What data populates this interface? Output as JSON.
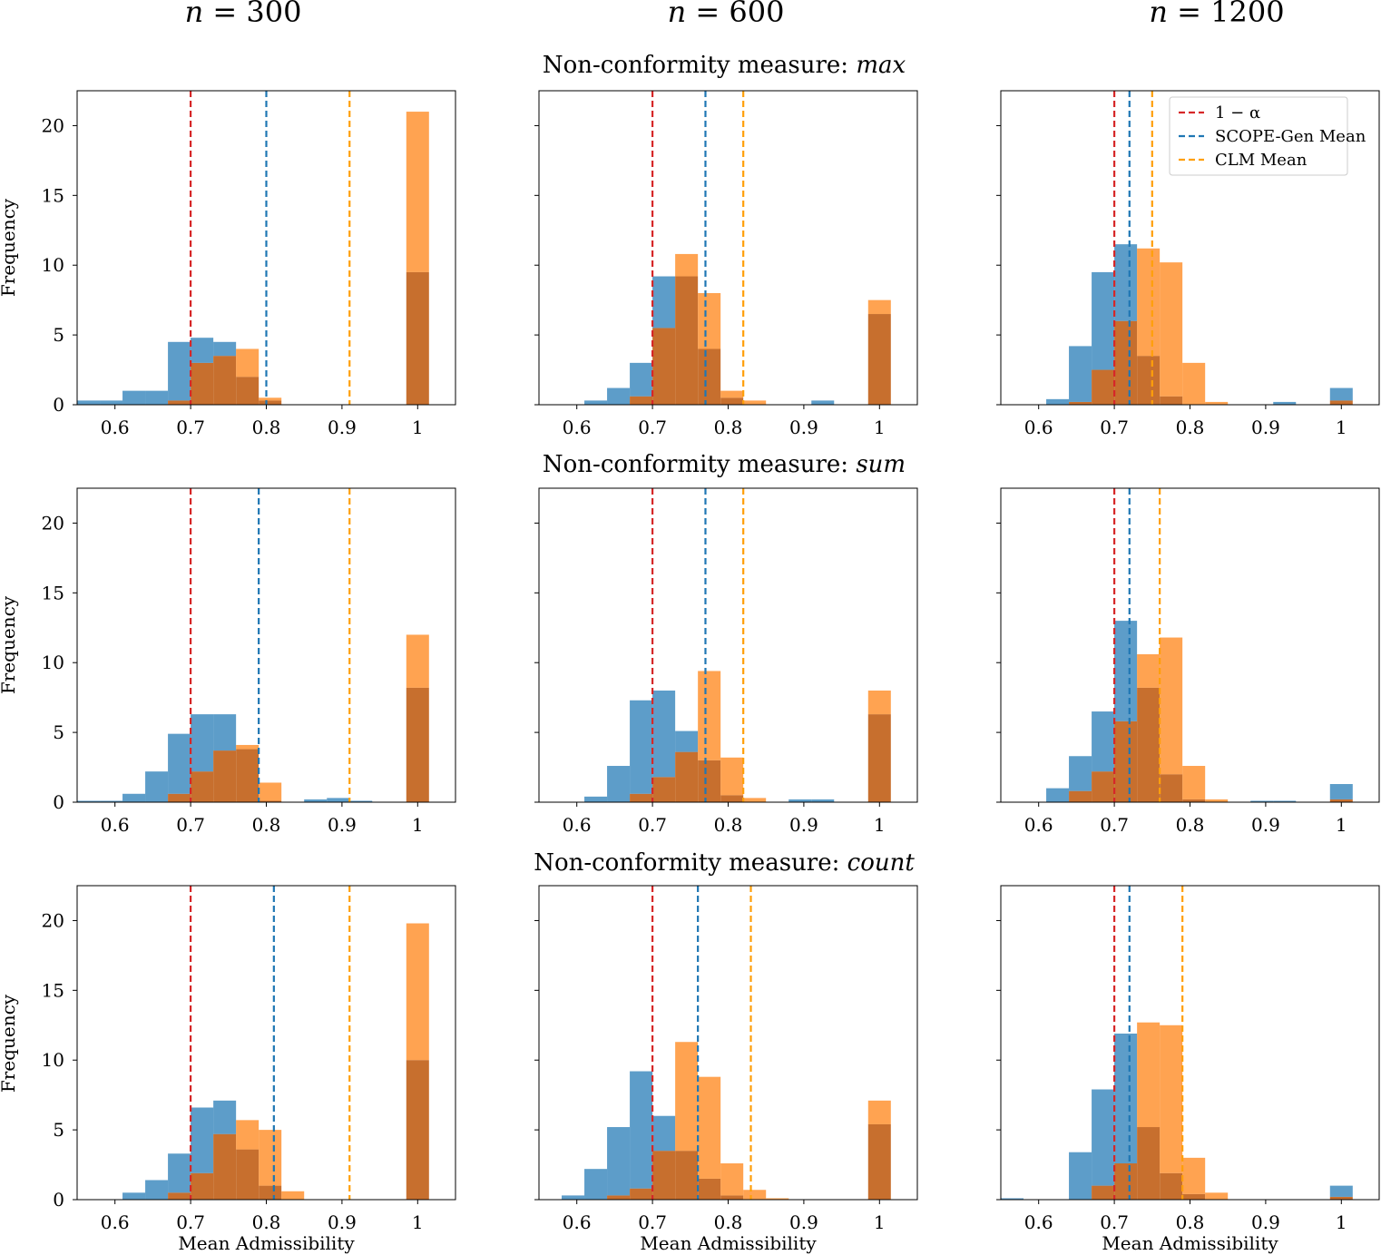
{
  "figure": {
    "column_titles": [
      "n = 300",
      "n = 600",
      "n = 1200"
    ],
    "row_titles": [
      "Non-conformity measure: max",
      "Non-conformity measure: sum",
      "Non-conformity measure: count"
    ],
    "row_title_prefix": "Non-conformity measure: ",
    "row_title_measures": [
      "max",
      "sum",
      "count"
    ],
    "n_label_prefix": "n",
    "n_values": [
      "300",
      "600",
      "1200"
    ],
    "xlabel": "Mean Admissibility",
    "ylabel": "Frequency",
    "legend": [
      "1 − α",
      "SCOPE-Gen Mean",
      "CLM Mean"
    ]
  },
  "colors": {
    "scope_bar": "#1f77b4",
    "clm_bar": "#ff7f0e",
    "overlap_bar": "#c76f2e",
    "alpha_line": "#d62728",
    "scope_line": "#1f77b4",
    "clm_line": "#ff9f0a"
  },
  "chart_data": [
    {
      "type": "bar",
      "row": "max",
      "n": 300,
      "xlim": [
        0.55,
        1.05
      ],
      "ylim": [
        0,
        22.5
      ],
      "xticks": [
        "0.6",
        "0.7",
        "0.8",
        "0.9",
        "1"
      ],
      "yticks": [
        "0",
        "5",
        "10",
        "15",
        "20"
      ],
      "alpha": 0.7,
      "scope_mean": 0.8,
      "clm_mean": 0.91,
      "bin_centers": [
        0.565,
        0.595,
        0.625,
        0.655,
        0.685,
        0.715,
        0.745,
        0.775,
        0.805,
        0.835,
        0.865,
        0.895,
        0.925,
        0.955,
        0.985,
        1.0
      ],
      "scope": [
        0.3,
        0.3,
        1.0,
        1.0,
        4.5,
        4.8,
        4.5,
        2.0,
        0.3,
        0,
        0,
        0,
        0,
        0,
        0,
        9.5
      ],
      "clm": [
        0,
        0,
        0,
        0,
        0.3,
        3.0,
        3.5,
        4.0,
        0.5,
        0,
        0,
        0,
        0,
        0,
        0,
        21.0
      ]
    },
    {
      "type": "bar",
      "row": "max",
      "n": 600,
      "xlim": [
        0.55,
        1.05
      ],
      "ylim": [
        0,
        22.5
      ],
      "xticks": [
        "0.6",
        "0.7",
        "0.8",
        "0.9",
        "1"
      ],
      "yticks": [
        "0",
        "5",
        "10",
        "15",
        "20"
      ],
      "alpha": 0.7,
      "scope_mean": 0.77,
      "clm_mean": 0.82,
      "bin_centers": [
        0.565,
        0.595,
        0.625,
        0.655,
        0.685,
        0.715,
        0.745,
        0.775,
        0.805,
        0.835,
        0.865,
        0.895,
        0.925,
        0.955,
        0.985,
        1.0
      ],
      "scope": [
        0,
        0,
        0.3,
        1.2,
        3.0,
        9.2,
        9.2,
        4.0,
        0.5,
        0,
        0,
        0,
        0.3,
        0,
        0,
        6.5
      ],
      "clm": [
        0,
        0,
        0,
        0,
        0.6,
        5.5,
        10.8,
        8.0,
        1.0,
        0.3,
        0,
        0,
        0,
        0,
        0,
        7.5
      ]
    },
    {
      "type": "bar",
      "row": "max",
      "n": 1200,
      "xlim": [
        0.55,
        1.05
      ],
      "ylim": [
        0,
        22.5
      ],
      "xticks": [
        "0.6",
        "0.7",
        "0.8",
        "0.9",
        "1"
      ],
      "yticks": [
        "0",
        "5",
        "10",
        "15",
        "20"
      ],
      "alpha": 0.7,
      "scope_mean": 0.72,
      "clm_mean": 0.75,
      "bin_centers": [
        0.565,
        0.595,
        0.625,
        0.655,
        0.685,
        0.715,
        0.745,
        0.775,
        0.805,
        0.835,
        0.865,
        0.895,
        0.925,
        0.955,
        0.985,
        1.0
      ],
      "scope": [
        0,
        0,
        0.4,
        4.2,
        9.5,
        11.5,
        3.5,
        0.6,
        0,
        0,
        0,
        0,
        0.2,
        0,
        0,
        1.2
      ],
      "clm": [
        0,
        0,
        0,
        0.2,
        2.5,
        6.0,
        11.2,
        10.2,
        3.0,
        0.2,
        0,
        0,
        0,
        0,
        0,
        0.3
      ]
    },
    {
      "type": "bar",
      "row": "sum",
      "n": 300,
      "xlim": [
        0.55,
        1.05
      ],
      "ylim": [
        0,
        22.5
      ],
      "xticks": [
        "0.6",
        "0.7",
        "0.8",
        "0.9",
        "1"
      ],
      "yticks": [
        "0",
        "5",
        "10",
        "15",
        "20"
      ],
      "alpha": 0.7,
      "scope_mean": 0.79,
      "clm_mean": 0.91,
      "bin_centers": [
        0.565,
        0.595,
        0.625,
        0.655,
        0.685,
        0.715,
        0.745,
        0.775,
        0.805,
        0.835,
        0.865,
        0.895,
        0.925,
        0.955,
        0.985,
        1.0
      ],
      "scope": [
        0.1,
        0.1,
        0.6,
        2.2,
        4.9,
        6.3,
        6.3,
        3.8,
        0.1,
        0,
        0.2,
        0.3,
        0.1,
        0,
        0,
        8.2
      ],
      "clm": [
        0,
        0,
        0,
        0,
        0.6,
        2.2,
        3.7,
        4.1,
        1.4,
        0,
        0,
        0,
        0,
        0,
        0,
        12.0
      ]
    },
    {
      "type": "bar",
      "row": "sum",
      "n": 600,
      "xlim": [
        0.55,
        1.05
      ],
      "ylim": [
        0,
        22.5
      ],
      "xticks": [
        "0.6",
        "0.7",
        "0.8",
        "0.9",
        "1"
      ],
      "yticks": [
        "0",
        "5",
        "10",
        "15",
        "20"
      ],
      "alpha": 0.7,
      "scope_mean": 0.77,
      "clm_mean": 0.82,
      "bin_centers": [
        0.565,
        0.595,
        0.625,
        0.655,
        0.685,
        0.715,
        0.745,
        0.775,
        0.805,
        0.835,
        0.865,
        0.895,
        0.925,
        0.955,
        0.985,
        1.0
      ],
      "scope": [
        0,
        0,
        0.4,
        2.6,
        7.3,
        8.0,
        5.1,
        3.0,
        0.5,
        0,
        0,
        0.2,
        0.2,
        0,
        0,
        6.3
      ],
      "clm": [
        0,
        0,
        0,
        0,
        0.6,
        1.8,
        3.6,
        9.4,
        3.2,
        0.3,
        0,
        0,
        0,
        0,
        0,
        8.0
      ]
    },
    {
      "type": "bar",
      "row": "sum",
      "n": 1200,
      "xlim": [
        0.55,
        1.05
      ],
      "ylim": [
        0,
        22.5
      ],
      "xticks": [
        "0.6",
        "0.7",
        "0.8",
        "0.9",
        "1"
      ],
      "yticks": [
        "0",
        "5",
        "10",
        "15",
        "20"
      ],
      "alpha": 0.7,
      "scope_mean": 0.72,
      "clm_mean": 0.76,
      "bin_centers": [
        0.565,
        0.595,
        0.625,
        0.655,
        0.685,
        0.715,
        0.745,
        0.775,
        0.805,
        0.835,
        0.865,
        0.895,
        0.925,
        0.955,
        0.985,
        1.0
      ],
      "scope": [
        0,
        0,
        1.0,
        3.3,
        6.5,
        13.0,
        8.2,
        2.0,
        0.2,
        0,
        0,
        0.1,
        0.1,
        0,
        0,
        1.3
      ],
      "clm": [
        0,
        0,
        0,
        0.8,
        2.2,
        5.8,
        10.6,
        11.8,
        2.6,
        0.2,
        0,
        0,
        0,
        0,
        0,
        0.2
      ]
    },
    {
      "type": "bar",
      "row": "count",
      "n": 300,
      "xlim": [
        0.55,
        1.05
      ],
      "ylim": [
        0,
        22.5
      ],
      "xticks": [
        "0.6",
        "0.7",
        "0.8",
        "0.9",
        "1"
      ],
      "yticks": [
        "0",
        "5",
        "10",
        "15",
        "20"
      ],
      "alpha": 0.7,
      "scope_mean": 0.81,
      "clm_mean": 0.91,
      "bin_centers": [
        0.565,
        0.595,
        0.625,
        0.655,
        0.685,
        0.715,
        0.745,
        0.775,
        0.805,
        0.835,
        0.865,
        0.895,
        0.925,
        0.955,
        0.985,
        1.0
      ],
      "scope": [
        0,
        0,
        0.5,
        1.4,
        3.3,
        6.6,
        7.1,
        3.6,
        1.0,
        0,
        0,
        0,
        0,
        0,
        0,
        10.0
      ],
      "clm": [
        0,
        0,
        0,
        0,
        0.5,
        1.9,
        4.7,
        5.7,
        5.0,
        0.6,
        0,
        0,
        0,
        0,
        0,
        19.8
      ]
    },
    {
      "type": "bar",
      "row": "count",
      "n": 600,
      "xlim": [
        0.55,
        1.05
      ],
      "ylim": [
        0,
        22.5
      ],
      "xticks": [
        "0.6",
        "0.7",
        "0.8",
        "0.9",
        "1"
      ],
      "yticks": [
        "0",
        "5",
        "10",
        "15",
        "20"
      ],
      "alpha": 0.7,
      "scope_mean": 0.76,
      "clm_mean": 0.83,
      "bin_centers": [
        0.565,
        0.595,
        0.625,
        0.655,
        0.685,
        0.715,
        0.745,
        0.775,
        0.805,
        0.835,
        0.865,
        0.895,
        0.925,
        0.955,
        0.985,
        1.0
      ],
      "scope": [
        0,
        0.3,
        2.2,
        5.2,
        9.2,
        6.0,
        3.5,
        1.5,
        0.3,
        0,
        0,
        0,
        0,
        0,
        0,
        5.4
      ],
      "clm": [
        0,
        0,
        0,
        0.3,
        0.8,
        3.5,
        11.3,
        8.8,
        2.6,
        0.7,
        0.1,
        0,
        0,
        0,
        0,
        7.1
      ]
    },
    {
      "type": "bar",
      "row": "count",
      "n": 1200,
      "xlim": [
        0.55,
        1.05
      ],
      "ylim": [
        0,
        22.5
      ],
      "xticks": [
        "0.6",
        "0.7",
        "0.8",
        "0.9",
        "1"
      ],
      "yticks": [
        "0",
        "5",
        "10",
        "15",
        "20"
      ],
      "alpha": 0.7,
      "scope_mean": 0.72,
      "clm_mean": 0.79,
      "bin_centers": [
        0.565,
        0.595,
        0.625,
        0.655,
        0.685,
        0.715,
        0.745,
        0.775,
        0.805,
        0.835,
        0.865,
        0.895,
        0.925,
        0.955,
        0.985,
        1.0
      ],
      "scope": [
        0.1,
        0,
        0,
        3.4,
        7.9,
        11.9,
        5.2,
        1.9,
        0.4,
        0,
        0,
        0,
        0,
        0,
        0,
        1.0
      ],
      "clm": [
        0,
        0,
        0,
        0,
        1.0,
        2.6,
        12.7,
        12.5,
        3.0,
        0.5,
        0,
        0,
        0,
        0,
        0,
        0.2
      ]
    }
  ]
}
